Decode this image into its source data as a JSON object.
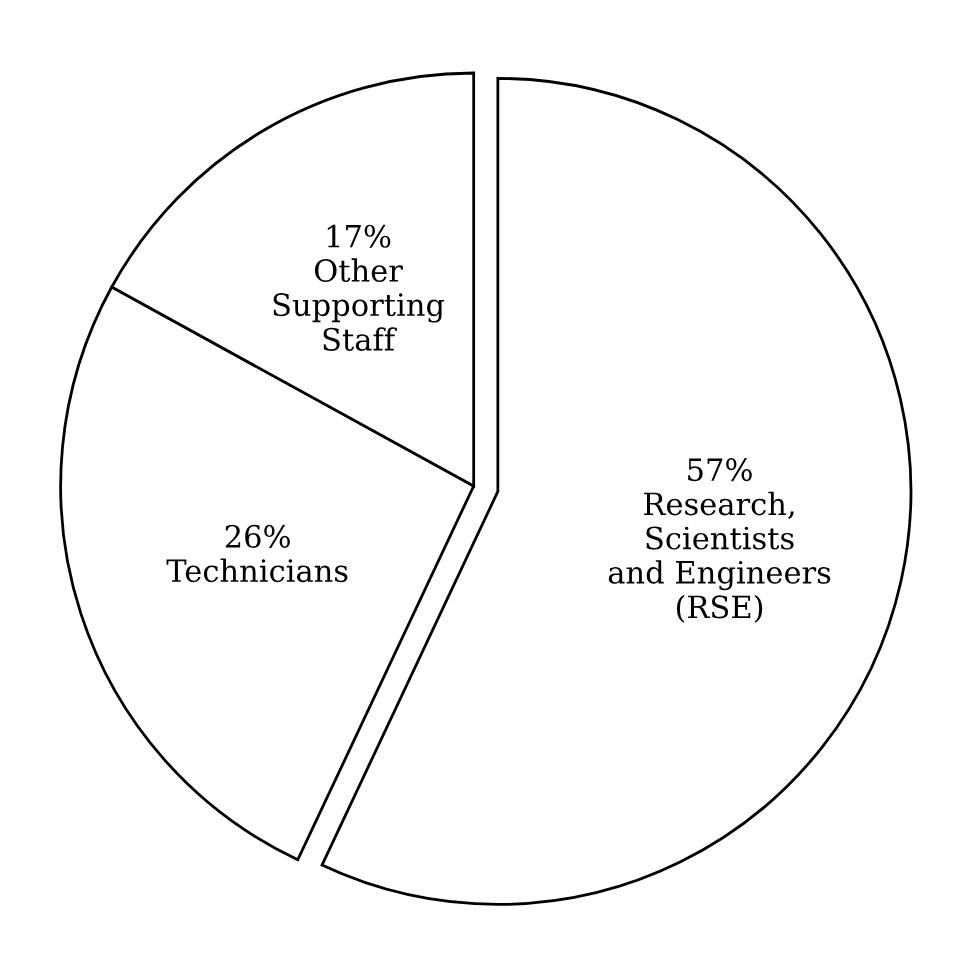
{
  "chart_data": {
    "type": "pie",
    "categories": [
      "Research,\nScientists\nand Engineers\n(RSE)",
      "Technicians",
      "Other\nSupporting\nStaff"
    ],
    "values": [
      57,
      26,
      17
    ],
    "value_labels": [
      "57%",
      "26%",
      "17%"
    ],
    "colors": [
      "#ffffff",
      "#ffffff",
      "#ffffff"
    ],
    "legend": false
  }
}
